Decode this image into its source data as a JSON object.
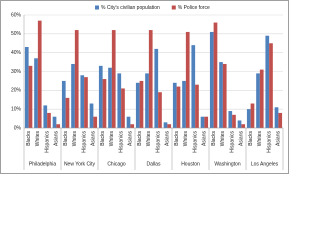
{
  "chart_data": {
    "type": "bar",
    "groups": [
      "Philadelphia",
      "New York City",
      "Chicago",
      "Dallas",
      "Houston",
      "Washington",
      "Los Angeles"
    ],
    "categories": [
      "Blacks",
      "Whites",
      "Hispanics",
      "Asians",
      "Blacks",
      "Whites",
      "Hispanics",
      "Asians",
      "Blacks",
      "Whites",
      "Hispanics",
      "Asians",
      "Blacks",
      "Whites",
      "Hispanics",
      "Asians",
      "Blacks",
      "Whites",
      "Hispanics",
      "Asians",
      "Blacks",
      "Whites",
      "Hispanics",
      "Asians",
      "Blacks",
      "Whites",
      "Hispanics",
      "Asians"
    ],
    "series": [
      {
        "name": "% City's civilian population",
        "color": "#4f81bd",
        "values": [
          43,
          37,
          12,
          6,
          25,
          34,
          28,
          13,
          33,
          32,
          29,
          6,
          24,
          29,
          42,
          3,
          24,
          25,
          44,
          6,
          51,
          35,
          9,
          4,
          10,
          29,
          49,
          11
        ]
      },
      {
        "name": "% Police force",
        "color": "#c0504d",
        "values": [
          33,
          57,
          8,
          2,
          16,
          52,
          27,
          6,
          26,
          52,
          21,
          2,
          25,
          52,
          19,
          2,
          22,
          51,
          23,
          6,
          56,
          34,
          7,
          2,
          13,
          31,
          45,
          8
        ]
      }
    ],
    "ylim": [
      0,
      60
    ],
    "yticks": [
      {
        "value": 0,
        "label": "0%"
      },
      {
        "value": 10,
        "label": "10%"
      },
      {
        "value": 20,
        "label": "20%"
      },
      {
        "value": 30,
        "label": "30%"
      },
      {
        "value": 40,
        "label": "40%"
      },
      {
        "value": 50,
        "label": "50%"
      },
      {
        "value": 60,
        "label": "60%"
      }
    ],
    "grid": true,
    "legend": "top"
  }
}
